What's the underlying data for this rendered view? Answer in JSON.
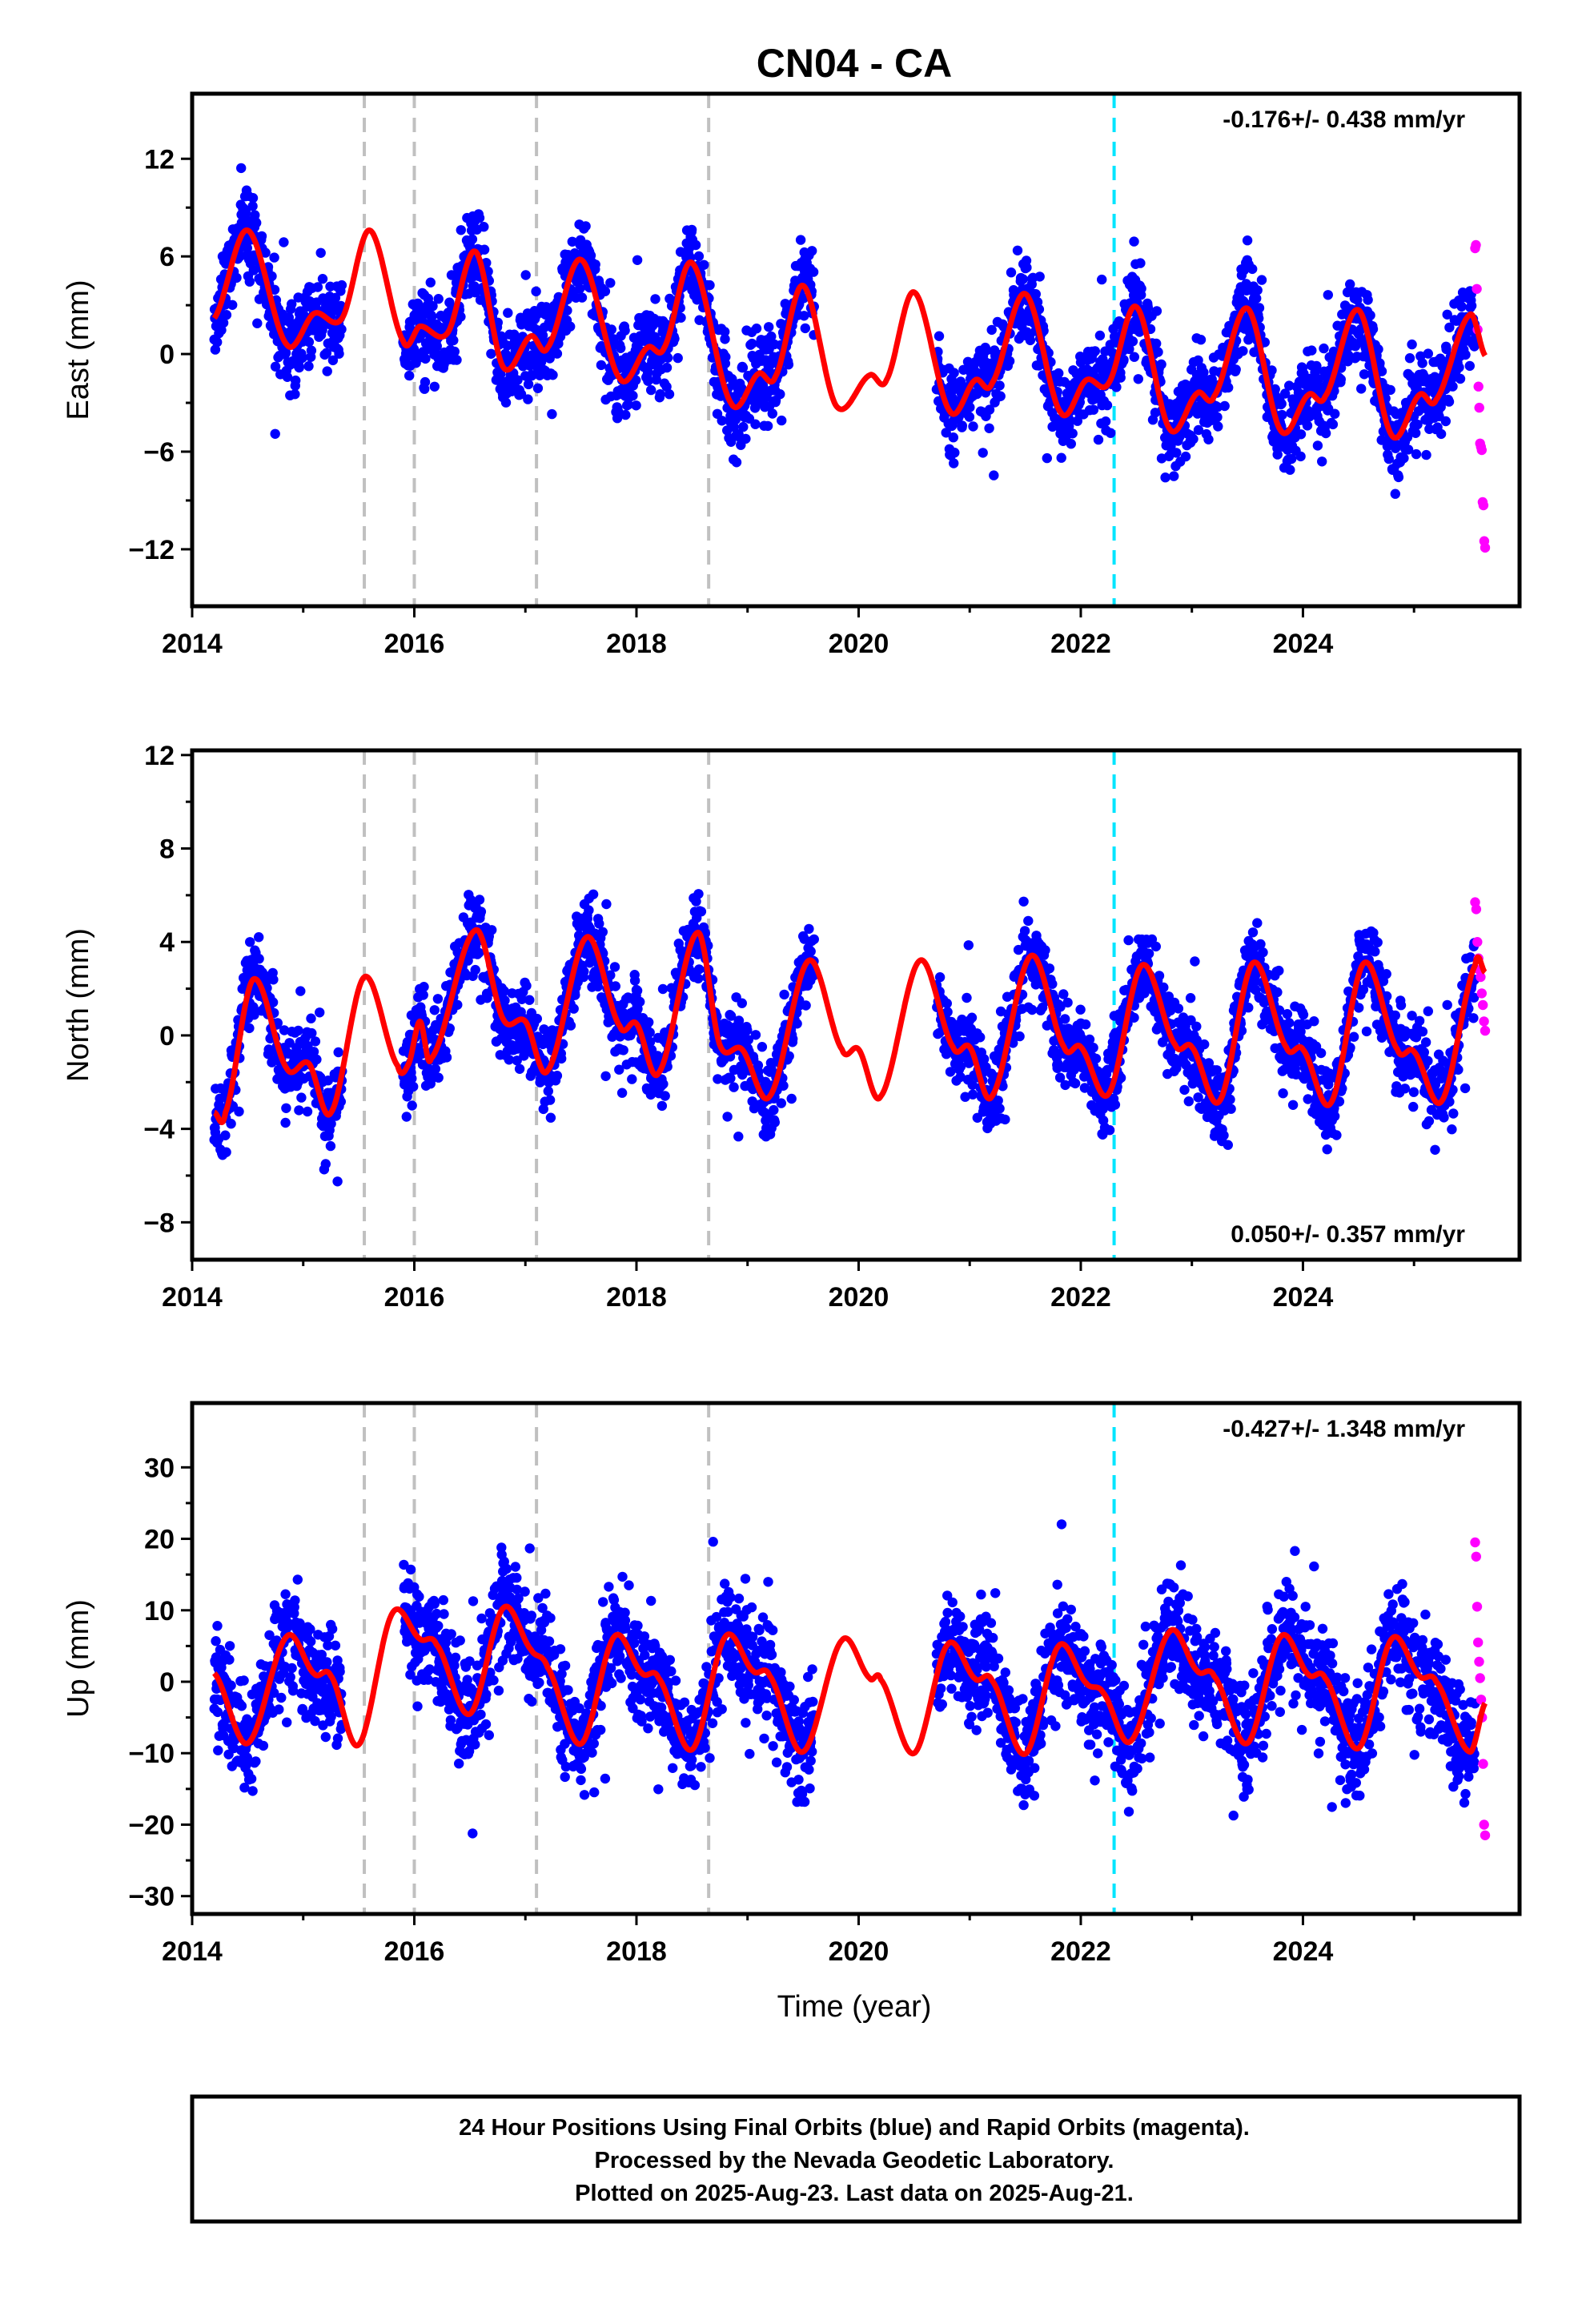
{
  "title": "CN04 - CA",
  "xlabel": "Time (year)",
  "footer": {
    "line1": "24 Hour Positions Using Final Orbits (blue) and Rapid Orbits (magenta).",
    "line2": "Processed by the Nevada Geodetic Laboratory.",
    "line3": "Plotted on 2025-Aug-23. Last data on 2025-Aug-21."
  },
  "colors": {
    "final_orbits": "#0000ff",
    "rapid_orbits": "#ff00ff",
    "model_fit": "#ff0000",
    "event_lines": "#c0c0c0",
    "equipment_change_line": "#00e5ff"
  },
  "chart_data": [
    {
      "type": "scatter",
      "ylabel": "East (mm)",
      "rate": "-0.176+/- 0.438 mm/yr",
      "rate_position": "top-right",
      "xlim": [
        2014,
        2025.95
      ],
      "ylim": [
        -15.5,
        16
      ],
      "xticks": [
        2014,
        2016,
        2018,
        2020,
        2022,
        2024
      ],
      "yticks": [
        -12,
        -6,
        0,
        6,
        12
      ],
      "event_lines": [
        2015.55,
        2016.0,
        2017.1,
        2018.65
      ],
      "equipment_change": [
        2022.3
      ],
      "final_range": [
        2014.2,
        2025.55
      ],
      "rapid_range": [
        2025.55,
        2025.64
      ],
      "gaps": [
        [
          2015.35,
          2015.9
        ],
        [
          2019.6,
          2020.7
        ]
      ],
      "seasonal_amplitude": 3.6,
      "scatter_sigma": 2.3,
      "offset": 2,
      "trend": -0.176,
      "phase": 0.55,
      "rapid_values": [
        6.5,
        6.7,
        4.0,
        1.5,
        -2.0,
        -3.3,
        -5.5,
        -5.7,
        -5.9,
        -9.1,
        -9.3,
        -11.5,
        -11.9
      ],
      "model": [
        [
          2014.2,
          2.2
        ],
        [
          2014.5,
          7.6
        ],
        [
          2014.85,
          0.6
        ],
        [
          2015.1,
          2.5
        ],
        [
          2015.35,
          2.2
        ],
        [
          2015.6,
          7.6
        ],
        [
          2015.9,
          0.8
        ],
        [
          2016.05,
          1.7
        ],
        [
          2016.3,
          1.3
        ],
        [
          2016.55,
          6.3
        ],
        [
          2016.8,
          -0.8
        ],
        [
          2017.05,
          1.1
        ],
        [
          2017.2,
          0.4
        ],
        [
          2017.5,
          5.8
        ],
        [
          2017.85,
          -1.5
        ],
        [
          2018.1,
          0.4
        ],
        [
          2018.25,
          0.4
        ],
        [
          2018.5,
          5.6
        ],
        [
          2018.85,
          -3.0
        ],
        [
          2019.1,
          -1.2
        ],
        [
          2019.25,
          -1.4
        ],
        [
          2019.5,
          4.2
        ],
        [
          2019.8,
          -3.2
        ],
        [
          2020.1,
          -1.3
        ],
        [
          2020.25,
          -1.6
        ],
        [
          2020.5,
          3.8
        ],
        [
          2020.82,
          -3.5
        ],
        [
          2021.05,
          -1.6
        ],
        [
          2021.2,
          -1.8
        ],
        [
          2021.5,
          3.7
        ],
        [
          2021.82,
          -3.6
        ],
        [
          2022.05,
          -1.6
        ],
        [
          2022.25,
          -1.8
        ],
        [
          2022.5,
          2.9
        ],
        [
          2022.8,
          -4.6
        ],
        [
          2023.05,
          -2.4
        ],
        [
          2023.2,
          -2.6
        ],
        [
          2023.5,
          2.8
        ],
        [
          2023.8,
          -4.7
        ],
        [
          2024.05,
          -2.5
        ],
        [
          2024.2,
          -2.6
        ],
        [
          2024.5,
          2.7
        ],
        [
          2024.8,
          -5.0
        ],
        [
          2025.05,
          -2.5
        ],
        [
          2025.2,
          -2.8
        ],
        [
          2025.5,
          2.4
        ],
        [
          2025.64,
          -0.1
        ]
      ]
    },
    {
      "type": "scatter",
      "ylabel": "North (mm)",
      "rate": "0.050+/- 0.357 mm/yr",
      "rate_position": "bottom-right",
      "xlim": [
        2014,
        2025.95
      ],
      "ylim": [
        -9.6,
        12.2
      ],
      "xticks": [
        2014,
        2016,
        2018,
        2020,
        2022,
        2024
      ],
      "yticks": [
        -8,
        -4,
        0,
        4,
        8,
        12
      ],
      "event_lines": [
        2015.55,
        2016.0,
        2017.1,
        2018.65
      ],
      "equipment_change": [
        2022.3
      ],
      "final_range": [
        2014.2,
        2025.55
      ],
      "rapid_range": [
        2025.55,
        2025.64
      ],
      "gaps": [
        [
          2015.35,
          2015.9
        ],
        [
          2019.6,
          2020.7
        ]
      ],
      "seasonal_amplitude": 2.5,
      "scatter_sigma": 1.5,
      "offset": 0,
      "trend": 0.05,
      "phase": 0.55,
      "rapid_values": [
        5.7,
        5.4,
        4.0,
        3.3,
        2.8,
        2.5,
        1.8,
        1.3,
        0.6,
        0.2
      ],
      "model": [
        [
          2014.2,
          -3.3
        ],
        [
          2014.3,
          -3.3
        ],
        [
          2014.55,
          2.4
        ],
        [
          2014.85,
          -1.4
        ],
        [
          2015.05,
          -1.2
        ],
        [
          2015.25,
          -3.3
        ],
        [
          2015.55,
          2.5
        ],
        [
          2015.85,
          -1.3
        ],
        [
          2015.95,
          -1.2
        ],
        [
          2016.05,
          0.6
        ],
        [
          2016.15,
          -1.0
        ],
        [
          2016.55,
          4.5
        ],
        [
          2016.8,
          0.7
        ],
        [
          2017.0,
          0.6
        ],
        [
          2017.2,
          -1.5
        ],
        [
          2017.55,
          4.2
        ],
        [
          2017.85,
          0.4
        ],
        [
          2018.0,
          0.5
        ],
        [
          2018.2,
          -1.6
        ],
        [
          2018.55,
          4.4
        ],
        [
          2018.75,
          -0.4
        ],
        [
          2018.95,
          -0.6
        ],
        [
          2019.2,
          -2.6
        ],
        [
          2019.55,
          3.2
        ],
        [
          2019.85,
          -0.6
        ],
        [
          2020.0,
          -0.6
        ],
        [
          2020.2,
          -2.6
        ],
        [
          2020.55,
          3.2
        ],
        [
          2020.85,
          -0.5
        ],
        [
          2021.0,
          -0.5
        ],
        [
          2021.2,
          -2.6
        ],
        [
          2021.55,
          3.4
        ],
        [
          2021.85,
          -0.5
        ],
        [
          2022.0,
          -0.5
        ],
        [
          2022.25,
          -2.5
        ],
        [
          2022.55,
          3.0
        ],
        [
          2022.85,
          -0.4
        ],
        [
          2023.0,
          -0.5
        ],
        [
          2023.25,
          -2.8
        ],
        [
          2023.55,
          3.1
        ],
        [
          2023.85,
          -0.5
        ],
        [
          2024.0,
          -0.6
        ],
        [
          2024.25,
          -2.9
        ],
        [
          2024.55,
          3.1
        ],
        [
          2024.85,
          -0.6
        ],
        [
          2025.0,
          -0.7
        ],
        [
          2025.25,
          -2.8
        ],
        [
          2025.55,
          3.0
        ],
        [
          2025.64,
          2.7
        ]
      ]
    },
    {
      "type": "scatter",
      "ylabel": "Up (mm)",
      "rate": "-0.427+/- 1.348 mm/yr",
      "rate_position": "top-right",
      "xlim": [
        2014,
        2025.95
      ],
      "ylim": [
        -32.5,
        39
      ],
      "xticks": [
        2014,
        2016,
        2018,
        2020,
        2022,
        2024
      ],
      "yticks": [
        -30,
        -20,
        -10,
        0,
        10,
        20,
        30
      ],
      "event_lines": [
        2015.55,
        2016.0,
        2017.1,
        2018.65
      ],
      "equipment_change": [
        2022.3
      ],
      "final_range": [
        2014.2,
        2025.55
      ],
      "rapid_range": [
        2025.55,
        2025.64
      ],
      "gaps": [
        [
          2015.35,
          2015.9
        ],
        [
          2019.6,
          2020.7
        ]
      ],
      "seasonal_amplitude": 8,
      "scatter_sigma": 6.5,
      "offset": 0,
      "trend": -0.427,
      "phase": 0.82,
      "rapid_values": [
        19.5,
        17.5,
        10.5,
        5.5,
        2.8,
        0.5,
        -2.5,
        -5.0,
        -11.5,
        -20.0,
        -21.5
      ],
      "model": [
        [
          2014.2,
          1.2
        ],
        [
          2014.5,
          -8.6
        ],
        [
          2014.85,
          6.3
        ],
        [
          2015.1,
          1.1
        ],
        [
          2015.25,
          0.8
        ],
        [
          2015.5,
          -8.8
        ],
        [
          2015.8,
          9.5
        ],
        [
          2016.05,
          6.0
        ],
        [
          2016.2,
          5.2
        ],
        [
          2016.5,
          -4.5
        ],
        [
          2016.8,
          10.3
        ],
        [
          2017.05,
          4.5
        ],
        [
          2017.2,
          2.0
        ],
        [
          2017.5,
          -8.7
        ],
        [
          2017.8,
          6.3
        ],
        [
          2018.05,
          1.2
        ],
        [
          2018.2,
          0.5
        ],
        [
          2018.5,
          -9.5
        ],
        [
          2018.8,
          6.3
        ],
        [
          2019.05,
          1.5
        ],
        [
          2019.2,
          0.8
        ],
        [
          2019.5,
          -9.8
        ],
        [
          2019.85,
          5.8
        ],
        [
          2020.1,
          0.5
        ],
        [
          2020.2,
          0.3
        ],
        [
          2020.5,
          -10.0
        ],
        [
          2020.8,
          5.2
        ],
        [
          2021.05,
          0.4
        ],
        [
          2021.2,
          0.2
        ],
        [
          2021.5,
          -10.1
        ],
        [
          2021.8,
          5.0
        ],
        [
          2022.05,
          -0.2
        ],
        [
          2022.2,
          -1.5
        ],
        [
          2022.45,
          -8.3
        ],
        [
          2022.8,
          7.0
        ],
        [
          2023.05,
          1.5
        ],
        [
          2023.2,
          0.8
        ],
        [
          2023.5,
          -8.6
        ],
        [
          2023.8,
          6.3
        ],
        [
          2024.05,
          1.0
        ],
        [
          2024.2,
          0.5
        ],
        [
          2024.5,
          -9.3
        ],
        [
          2024.8,
          6.0
        ],
        [
          2025.05,
          0.8
        ],
        [
          2025.2,
          0.0
        ],
        [
          2025.5,
          -9.8
        ],
        [
          2025.64,
          -3.0
        ]
      ]
    }
  ]
}
